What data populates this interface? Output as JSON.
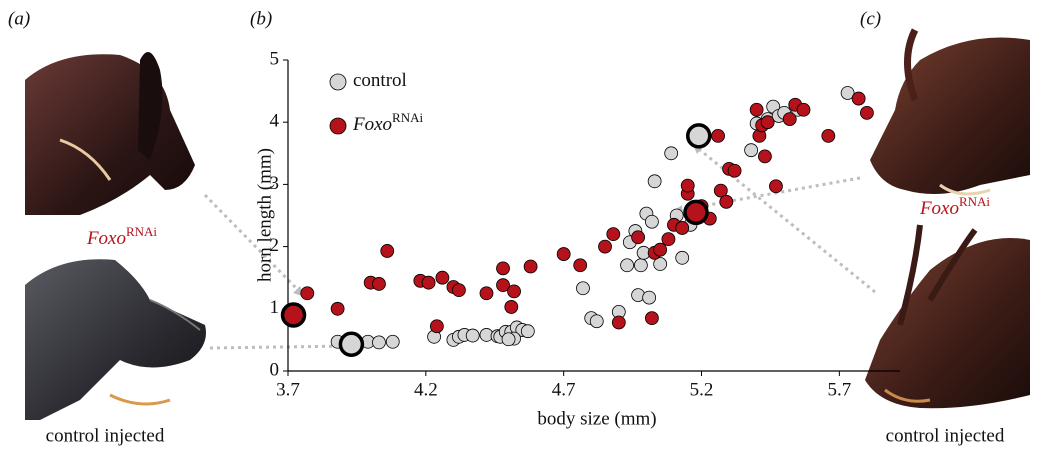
{
  "panels": {
    "a": {
      "label": "(a)",
      "top_label": "Foxo",
      "top_label_sup": "RNAi",
      "bottom_label": "control injected"
    },
    "b": {
      "label": "(b)"
    },
    "c": {
      "label": "(c)",
      "top_label": "Foxo",
      "top_label_sup": "RNAi",
      "bottom_label": "control injected"
    }
  },
  "chart_data": {
    "type": "scatter",
    "x_label": "body size (mm)",
    "y_label": "horn length (mm)",
    "xlim": [
      3.7,
      5.92
    ],
    "xticks": [
      3.7,
      4.2,
      4.7,
      5.2,
      5.7
    ],
    "ylim": [
      0,
      5
    ],
    "yticks": [
      0,
      1,
      2,
      3,
      4,
      5
    ],
    "grid": false,
    "legend": "upper left",
    "series": [
      {
        "name": "control",
        "color": "#d6d6d6",
        "x": [
          3.88,
          3.99,
          4.03,
          4.08,
          4.23,
          4.3,
          4.32,
          4.34,
          4.37,
          4.42,
          4.46,
          4.47,
          4.49,
          4.51,
          4.53,
          4.55,
          4.57,
          4.52,
          4.5,
          4.77,
          4.8,
          4.82,
          4.9,
          4.93,
          4.94,
          4.96,
          4.97,
          4.98,
          4.99,
          5.0,
          5.01,
          5.02,
          5.03,
          5.05,
          5.09,
          5.11,
          5.13,
          5.16,
          5.38,
          5.4,
          5.44,
          5.46,
          5.48,
          5.5,
          5.55,
          5.73,
          3.93,
          5.19
        ],
        "values": [
          0.47,
          0.47,
          0.46,
          0.47,
          0.55,
          0.5,
          0.55,
          0.58,
          0.57,
          0.58,
          0.56,
          0.55,
          0.63,
          0.63,
          0.7,
          0.66,
          0.64,
          0.52,
          0.51,
          1.33,
          0.85,
          0.8,
          0.95,
          1.7,
          2.07,
          2.25,
          1.22,
          1.7,
          1.9,
          2.53,
          1.18,
          2.4,
          3.05,
          1.72,
          3.5,
          2.5,
          1.82,
          2.35,
          3.55,
          3.98,
          4.05,
          4.25,
          4.1,
          4.15,
          4.2,
          4.47,
          0.43,
          3.78
        ],
        "highlight": [
          46,
          47
        ]
      },
      {
        "name": "Foxo",
        "name_sup": "RNAi",
        "color": "#b5121b",
        "x": [
          3.77,
          3.88,
          4.0,
          4.03,
          4.06,
          4.18,
          4.21,
          4.24,
          4.26,
          4.3,
          4.32,
          4.42,
          4.48,
          4.48,
          4.51,
          4.52,
          4.58,
          4.7,
          4.76,
          4.85,
          4.88,
          4.9,
          4.97,
          5.02,
          5.03,
          5.05,
          5.08,
          5.1,
          5.13,
          5.15,
          5.15,
          5.2,
          5.23,
          5.26,
          5.27,
          5.29,
          5.3,
          5.32,
          5.4,
          5.41,
          5.42,
          5.43,
          5.44,
          5.47,
          5.52,
          5.54,
          5.57,
          5.66,
          5.77,
          5.8,
          3.72,
          5.18
        ],
        "values": [
          1.25,
          1.0,
          1.42,
          1.4,
          1.93,
          1.45,
          1.42,
          0.72,
          1.5,
          1.35,
          1.3,
          1.25,
          1.65,
          1.38,
          1.03,
          1.28,
          1.68,
          1.88,
          1.7,
          2.0,
          2.2,
          0.78,
          2.15,
          0.85,
          1.9,
          1.95,
          2.12,
          2.35,
          2.3,
          2.85,
          2.98,
          2.65,
          2.45,
          3.78,
          2.9,
          2.72,
          3.25,
          3.22,
          4.2,
          3.78,
          3.95,
          3.45,
          4.0,
          2.97,
          4.05,
          4.28,
          4.2,
          3.78,
          4.38,
          4.15,
          0.9,
          2.55
        ],
        "highlight": [
          50,
          51
        ]
      }
    ]
  }
}
